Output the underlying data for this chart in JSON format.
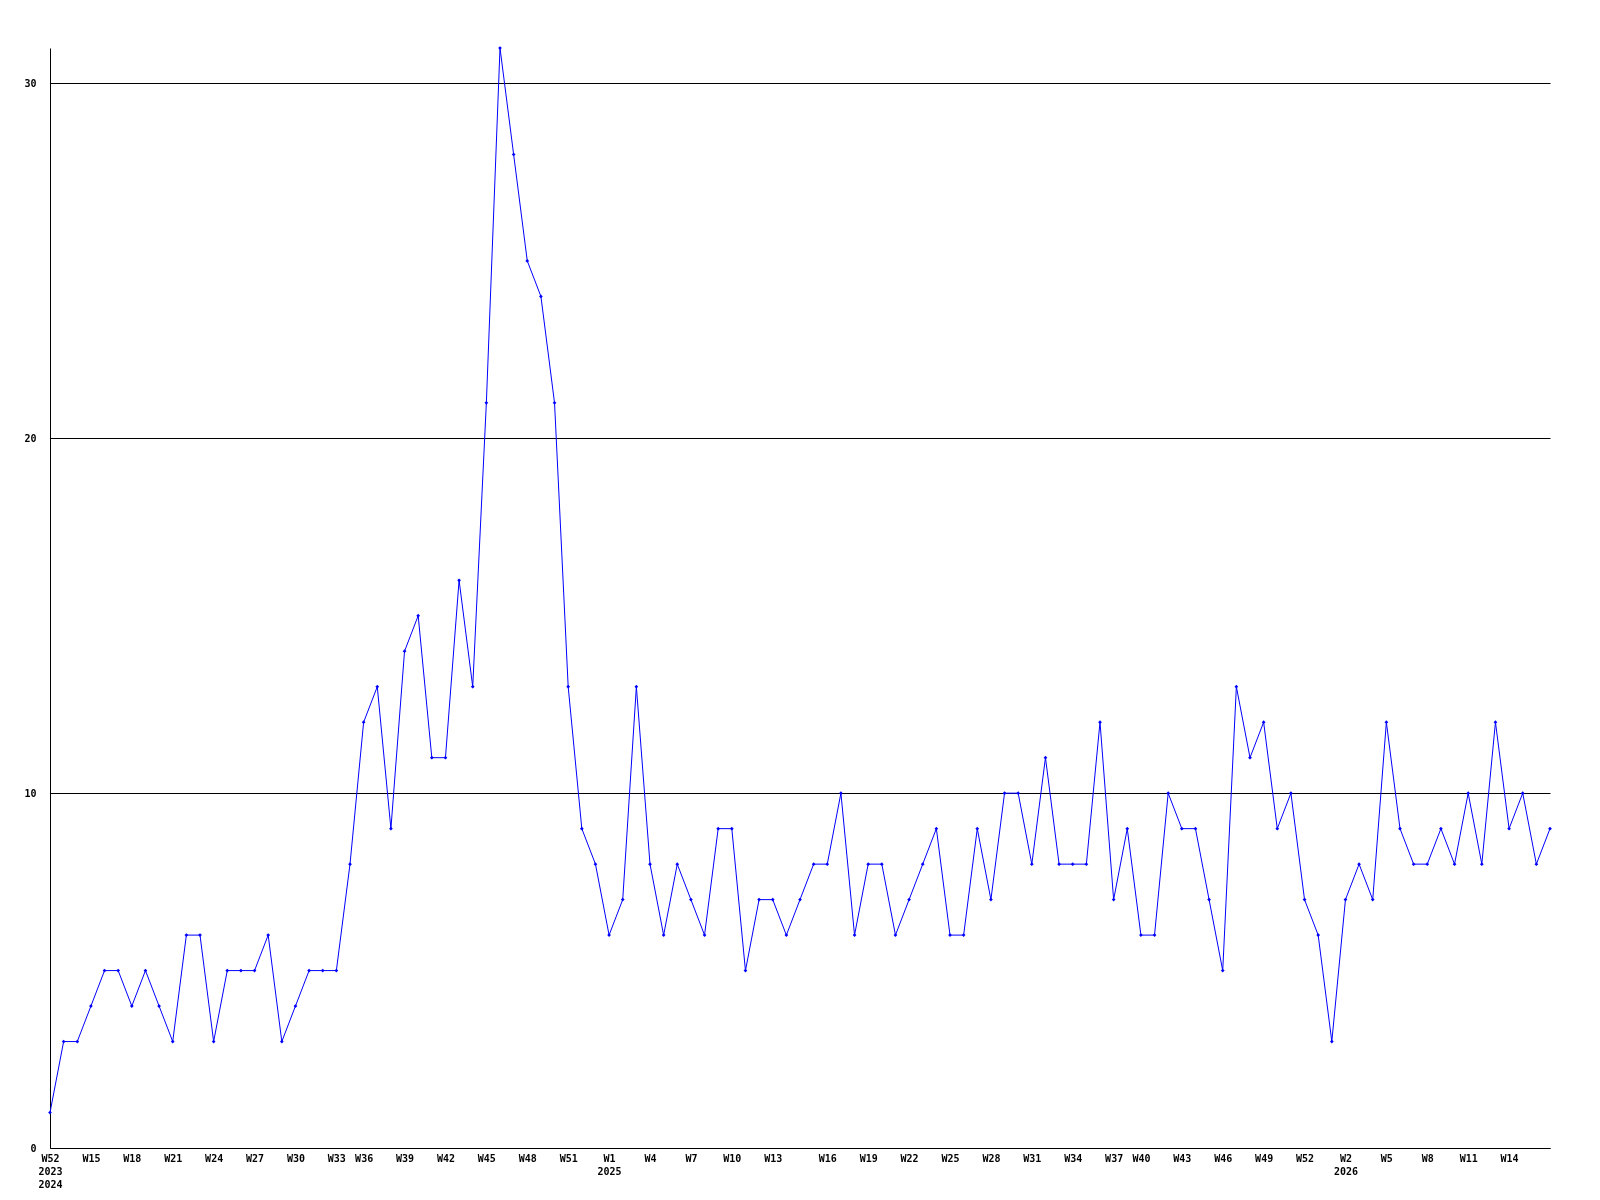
{
  "chart_data": {
    "type": "line",
    "categories": [
      "W52\n2023\n2024",
      null,
      null,
      "W15",
      null,
      null,
      "W18",
      null,
      null,
      "W21",
      null,
      null,
      "W24",
      null,
      null,
      "W27",
      null,
      null,
      "W30",
      null,
      null,
      "W33",
      null,
      "W36",
      null,
      null,
      "W39",
      null,
      null,
      "W42",
      null,
      null,
      "W45",
      null,
      null,
      "W48",
      null,
      null,
      "W51",
      null,
      null,
      "W1\n2025",
      null,
      null,
      "W4",
      null,
      null,
      "W7",
      null,
      null,
      "W10",
      null,
      null,
      "W13",
      null,
      null,
      null,
      "W16",
      null,
      null,
      "W19",
      null,
      null,
      "W22",
      null,
      null,
      "W25",
      null,
      null,
      "W28",
      null,
      null,
      "W31",
      null,
      null,
      "W34",
      null,
      null,
      "W37",
      null,
      "W40",
      null,
      null,
      "W43",
      null,
      null,
      "W46",
      null,
      null,
      "W49",
      null,
      null,
      "W52",
      null,
      null,
      "W2\n2026",
      null,
      null,
      "W5",
      null,
      null,
      "W8",
      null,
      null,
      "W11",
      null,
      null,
      "W14",
      null,
      null,
      null
    ],
    "series": [
      {
        "color": "#0000ff",
        "values": [
          1,
          3,
          3,
          4,
          5,
          5,
          4,
          5,
          4,
          3,
          6,
          6,
          3,
          5,
          5,
          5,
          6,
          3,
          4,
          5,
          5,
          5,
          8,
          12,
          13,
          9,
          14,
          15,
          11,
          11,
          16,
          13,
          21,
          31,
          28,
          25,
          24,
          21,
          13,
          9,
          8,
          6,
          7,
          13,
          8,
          6,
          8,
          7,
          6,
          9,
          9,
          5,
          7,
          7,
          6,
          7,
          8,
          8,
          10,
          6,
          8,
          8,
          6,
          7,
          8,
          9,
          6,
          6,
          9,
          7,
          10,
          10,
          8,
          11,
          8,
          8,
          8,
          12,
          7,
          9,
          6,
          6,
          10,
          9,
          9,
          7,
          5,
          13,
          11,
          12,
          9,
          10,
          7,
          6,
          3,
          7,
          8,
          7,
          12,
          9,
          8,
          8,
          9,
          8,
          10,
          8,
          12,
          9,
          10,
          8,
          9
        ]
      }
    ],
    "ylim": [
      0,
      31
    ],
    "yticks": [
      0,
      10,
      20,
      30
    ],
    "grid": "y",
    "marker": "diamond",
    "line_style": "solid"
  }
}
